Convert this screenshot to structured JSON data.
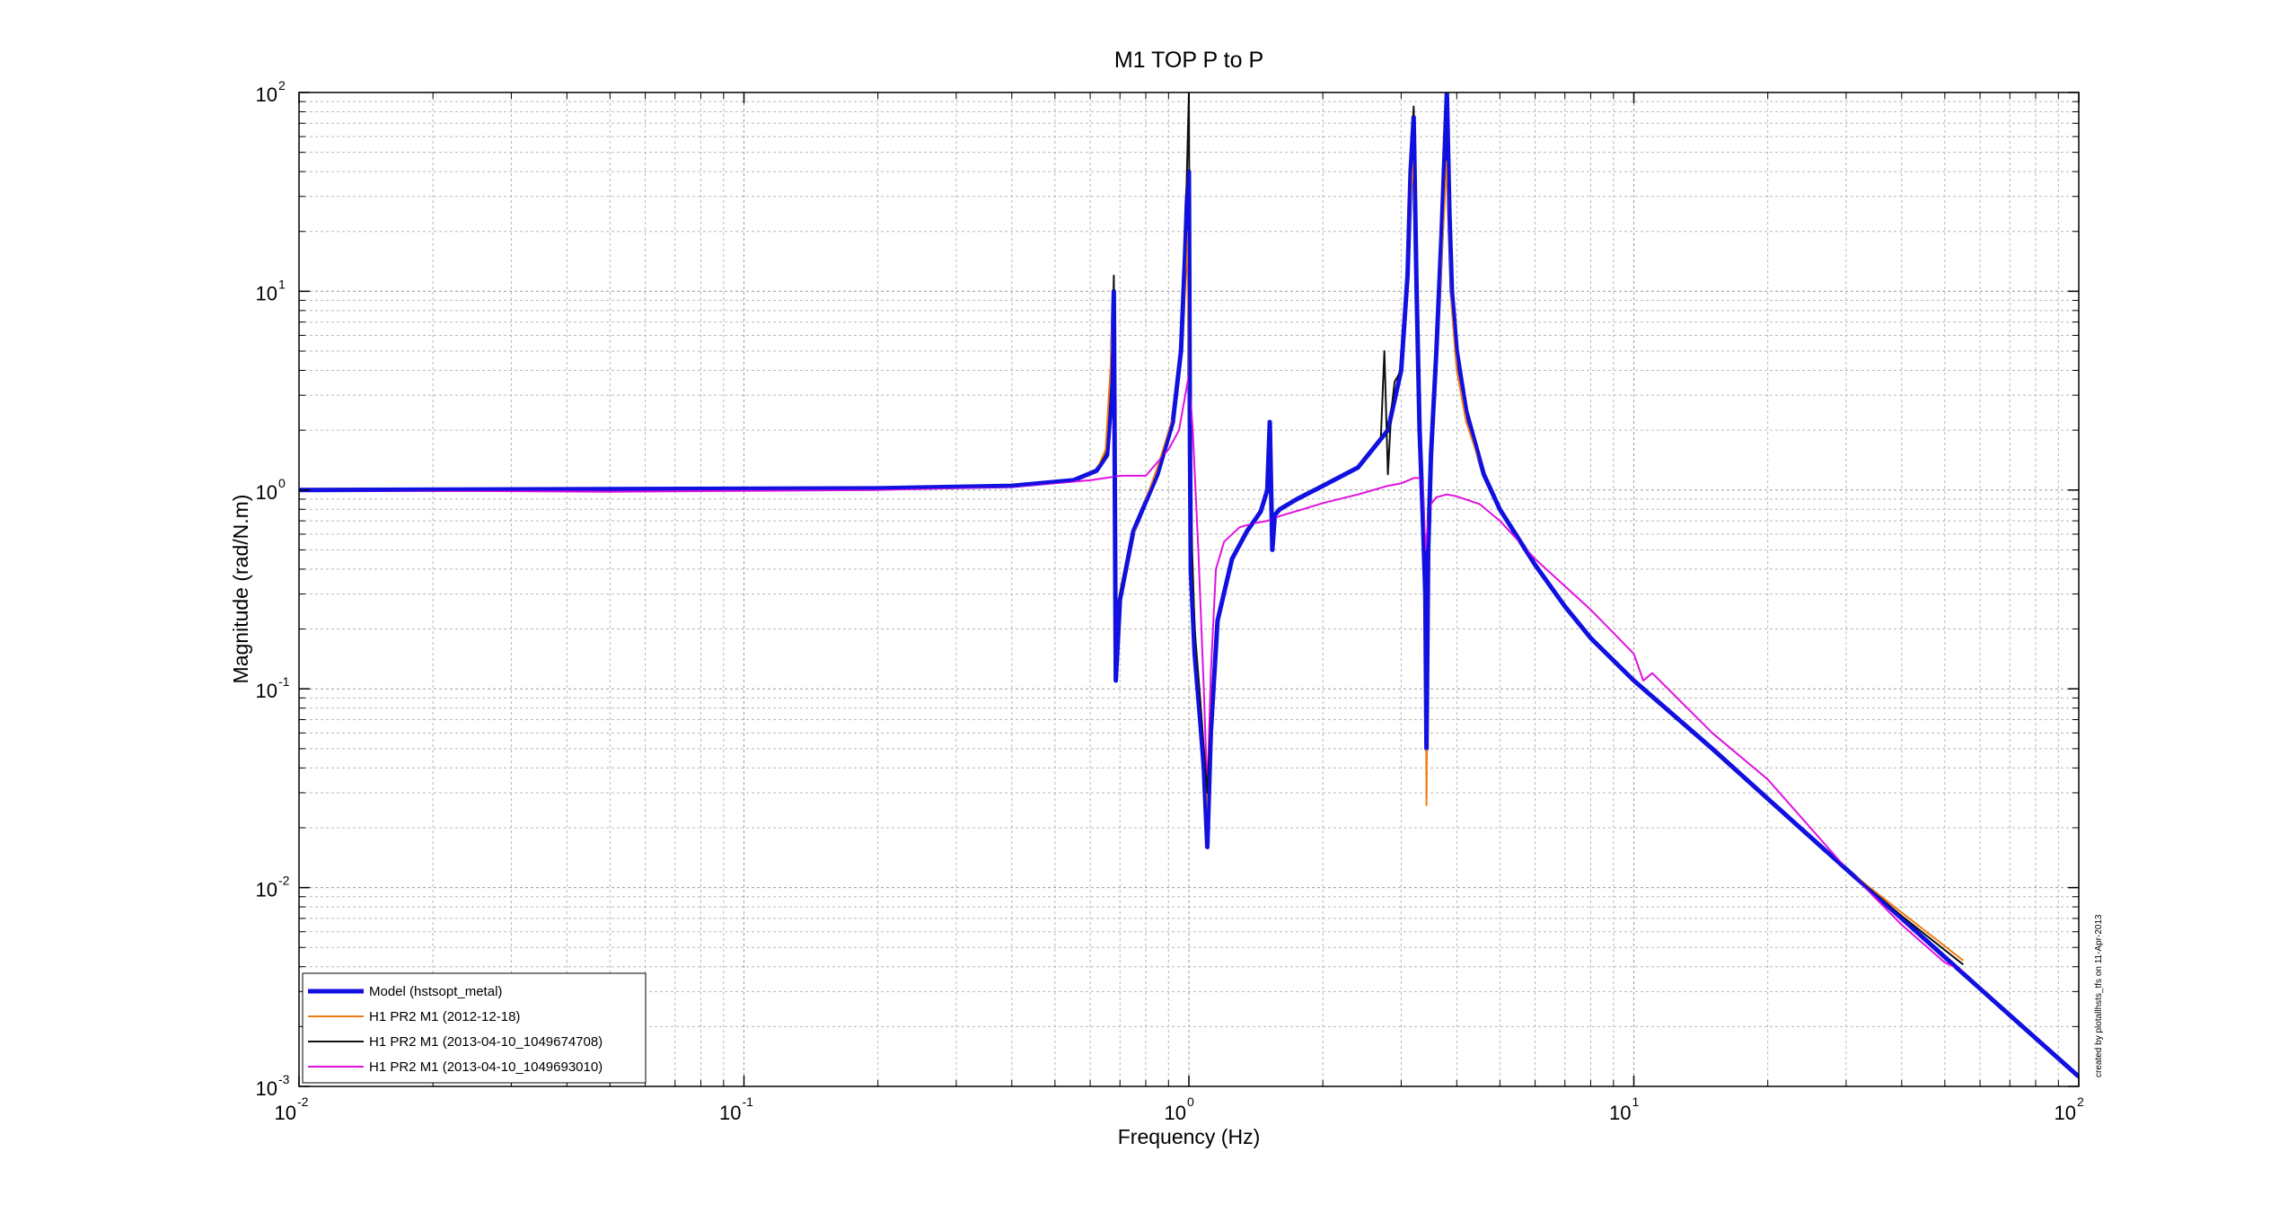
{
  "chart_data": {
    "type": "line",
    "title": "M1 TOP P to P",
    "xlabel": "Frequency (Hz)",
    "ylabel": "Magnitude (rad/N.m)",
    "xscale": "log",
    "yscale": "log",
    "xlim": [
      0.01,
      100
    ],
    "ylim": [
      0.001,
      100
    ],
    "grid": true,
    "legend_position": "bottom-left",
    "x_ticks": [
      {
        "base": "10",
        "exp": "-2"
      },
      {
        "base": "10",
        "exp": "-1"
      },
      {
        "base": "10",
        "exp": "0"
      },
      {
        "base": "10",
        "exp": "1"
      },
      {
        "base": "10",
        "exp": "2"
      }
    ],
    "y_ticks": [
      {
        "base": "10",
        "exp": "-3"
      },
      {
        "base": "10",
        "exp": "-2"
      },
      {
        "base": "10",
        "exp": "-1"
      },
      {
        "base": "10",
        "exp": "0"
      },
      {
        "base": "10",
        "exp": "1"
      },
      {
        "base": "10",
        "exp": "2"
      }
    ],
    "annotation": "created by plotallhsts_tfs on 11-Apr-2013",
    "series": [
      {
        "name": "Model (hstsopt_metal)",
        "color": "#1010e0",
        "width": 5,
        "x": [
          0.01,
          0.05,
          0.2,
          0.4,
          0.55,
          0.62,
          0.655,
          0.67,
          0.678,
          0.685,
          0.7,
          0.75,
          0.85,
          0.92,
          0.96,
          0.98,
          0.99,
          1.0,
          1.005,
          1.01,
          1.03,
          1.06,
          1.08,
          1.1,
          1.12,
          1.16,
          1.25,
          1.35,
          1.45,
          1.5,
          1.52,
          1.54,
          1.56,
          1.6,
          1.75,
          2.0,
          2.4,
          2.8,
          3.0,
          3.1,
          3.15,
          3.2,
          3.25,
          3.3,
          3.35,
          3.4,
          3.42,
          3.45,
          3.5,
          3.6,
          3.7,
          3.8,
          3.85,
          3.9,
          4.0,
          4.2,
          4.6,
          5.0,
          6.0,
          7.0,
          8.0,
          10,
          15,
          20,
          30,
          40,
          60,
          100
        ],
        "y": [
          1.0,
          1.01,
          1.02,
          1.05,
          1.12,
          1.25,
          1.5,
          3.0,
          10.0,
          0.11,
          0.28,
          0.62,
          1.2,
          2.2,
          5.0,
          15.0,
          28.0,
          40.0,
          2.0,
          0.4,
          0.15,
          0.07,
          0.04,
          0.016,
          0.06,
          0.22,
          0.45,
          0.62,
          0.78,
          1.0,
          2.2,
          0.5,
          0.75,
          0.8,
          0.9,
          1.05,
          1.3,
          2.0,
          4.0,
          12.0,
          40.0,
          75.0,
          10.0,
          2.0,
          0.8,
          0.3,
          0.05,
          0.5,
          1.5,
          5.0,
          20.0,
          100.0,
          25.0,
          10.0,
          5.0,
          2.5,
          1.2,
          0.8,
          0.42,
          0.26,
          0.18,
          0.11,
          0.05,
          0.028,
          0.0124,
          0.007,
          0.0031,
          0.00112
        ]
      },
      {
        "name": "H1 PR2  M1 (2012-12-18)",
        "color": "#f07c0f",
        "width": 2,
        "x": [
          0.4,
          0.55,
          0.62,
          0.65,
          0.668,
          0.678,
          0.685,
          0.7,
          0.75,
          0.85,
          0.92,
          0.96,
          0.98,
          0.99,
          1.0,
          1.005,
          1.01,
          1.03,
          1.06,
          1.1,
          1.12,
          1.16,
          1.25,
          1.35,
          1.45,
          1.5,
          1.52,
          1.54,
          1.56,
          1.6,
          1.75,
          2.0,
          2.4,
          2.8,
          3.0,
          3.1,
          3.15,
          3.2,
          3.25,
          3.3,
          3.35,
          3.4,
          3.42,
          3.45,
          3.5,
          3.6,
          3.7,
          3.8,
          3.85,
          3.9,
          4.0,
          4.2,
          4.6,
          5.0,
          6.0,
          7.0,
          8.0,
          10,
          15,
          20,
          30,
          40,
          55
        ],
        "y": [
          1.05,
          1.12,
          1.25,
          1.6,
          4.5,
          10.0,
          0.13,
          0.3,
          0.6,
          1.3,
          2.3,
          5.0,
          12.0,
          20.0,
          4.0,
          1.5,
          0.5,
          0.18,
          0.08,
          0.025,
          0.07,
          0.22,
          0.45,
          0.62,
          0.78,
          1.0,
          2.0,
          0.6,
          0.75,
          0.8,
          0.9,
          1.05,
          1.3,
          2.0,
          4.0,
          12.0,
          30.0,
          45.0,
          10.0,
          2.0,
          0.8,
          0.3,
          0.026,
          0.5,
          1.5,
          5.0,
          15.0,
          45.0,
          20.0,
          8.0,
          4.0,
          2.2,
          1.2,
          0.8,
          0.42,
          0.26,
          0.18,
          0.11,
          0.05,
          0.028,
          0.0124,
          0.0075,
          0.0043
        ]
      },
      {
        "name": "H1 PR2  M1 (2013-04-10_1049674708)",
        "color": "#101010",
        "width": 2,
        "x": [
          0.01,
          0.05,
          0.2,
          0.4,
          0.55,
          0.62,
          0.655,
          0.67,
          0.678,
          0.685,
          0.7,
          0.75,
          0.85,
          0.92,
          0.96,
          0.98,
          0.99,
          1.0,
          1.005,
          1.01,
          1.03,
          1.06,
          1.08,
          1.1,
          1.12,
          1.16,
          1.25,
          1.35,
          1.45,
          1.5,
          1.52,
          1.54,
          1.56,
          1.6,
          1.75,
          2.0,
          2.4,
          2.7,
          2.75,
          2.8,
          2.85,
          2.9,
          3.0,
          3.1,
          3.15,
          3.2,
          3.25,
          3.3,
          3.35,
          3.4,
          3.42,
          3.45,
          3.5,
          3.6,
          3.7,
          3.8,
          3.85,
          3.9,
          4.0,
          4.2,
          4.6,
          5.0,
          6.0,
          7.0,
          8.0,
          10,
          15,
          20,
          30,
          40,
          55
        ],
        "y": [
          1.0,
          1.01,
          1.02,
          1.05,
          1.12,
          1.25,
          1.55,
          3.5,
          12.0,
          0.11,
          0.3,
          0.62,
          1.2,
          2.2,
          5.0,
          15.0,
          40.0,
          100.0,
          5.0,
          0.8,
          0.2,
          0.09,
          0.05,
          0.03,
          0.07,
          0.22,
          0.45,
          0.62,
          0.78,
          1.0,
          1.8,
          0.6,
          0.75,
          0.8,
          0.9,
          1.05,
          1.3,
          1.8,
          5.0,
          1.2,
          2.5,
          3.5,
          4.0,
          12.0,
          40.0,
          85.0,
          10.0,
          2.0,
          0.8,
          0.3,
          0.07,
          0.5,
          1.5,
          5.0,
          20.0,
          80.0,
          25.0,
          10.0,
          5.0,
          2.5,
          1.2,
          0.8,
          0.42,
          0.26,
          0.18,
          0.11,
          0.05,
          0.028,
          0.0124,
          0.0072,
          0.0041
        ]
      },
      {
        "name": "H1 PR2  M1 (2013-04-10_1049693010)",
        "color": "#e010e0",
        "width": 2,
        "x": [
          0.01,
          0.05,
          0.2,
          0.4,
          0.6,
          0.65,
          0.7,
          0.8,
          0.9,
          0.95,
          1.0,
          1.02,
          1.05,
          1.08,
          1.1,
          1.12,
          1.15,
          1.2,
          1.3,
          1.4,
          1.5,
          1.55,
          1.6,
          1.8,
          2.0,
          2.4,
          2.8,
          3.0,
          3.2,
          3.3,
          3.35,
          3.4,
          3.45,
          3.5,
          3.6,
          3.8,
          4.0,
          4.5,
          5.0,
          6.0,
          8.0,
          10,
          10.5,
          11,
          15,
          20,
          30,
          40,
          50,
          55
        ],
        "y": [
          1.0,
          0.98,
          1.0,
          1.04,
          1.12,
          1.15,
          1.18,
          1.18,
          1.6,
          2.0,
          3.8,
          2.0,
          0.5,
          0.1,
          0.03,
          0.12,
          0.4,
          0.55,
          0.65,
          0.68,
          0.7,
          0.72,
          0.74,
          0.8,
          0.86,
          0.95,
          1.05,
          1.08,
          1.15,
          1.15,
          1.1,
          0.5,
          0.7,
          0.85,
          0.92,
          0.95,
          0.93,
          0.85,
          0.7,
          0.45,
          0.25,
          0.15,
          0.11,
          0.12,
          0.06,
          0.035,
          0.0125,
          0.0065,
          0.0042,
          0.0038
        ]
      }
    ]
  }
}
